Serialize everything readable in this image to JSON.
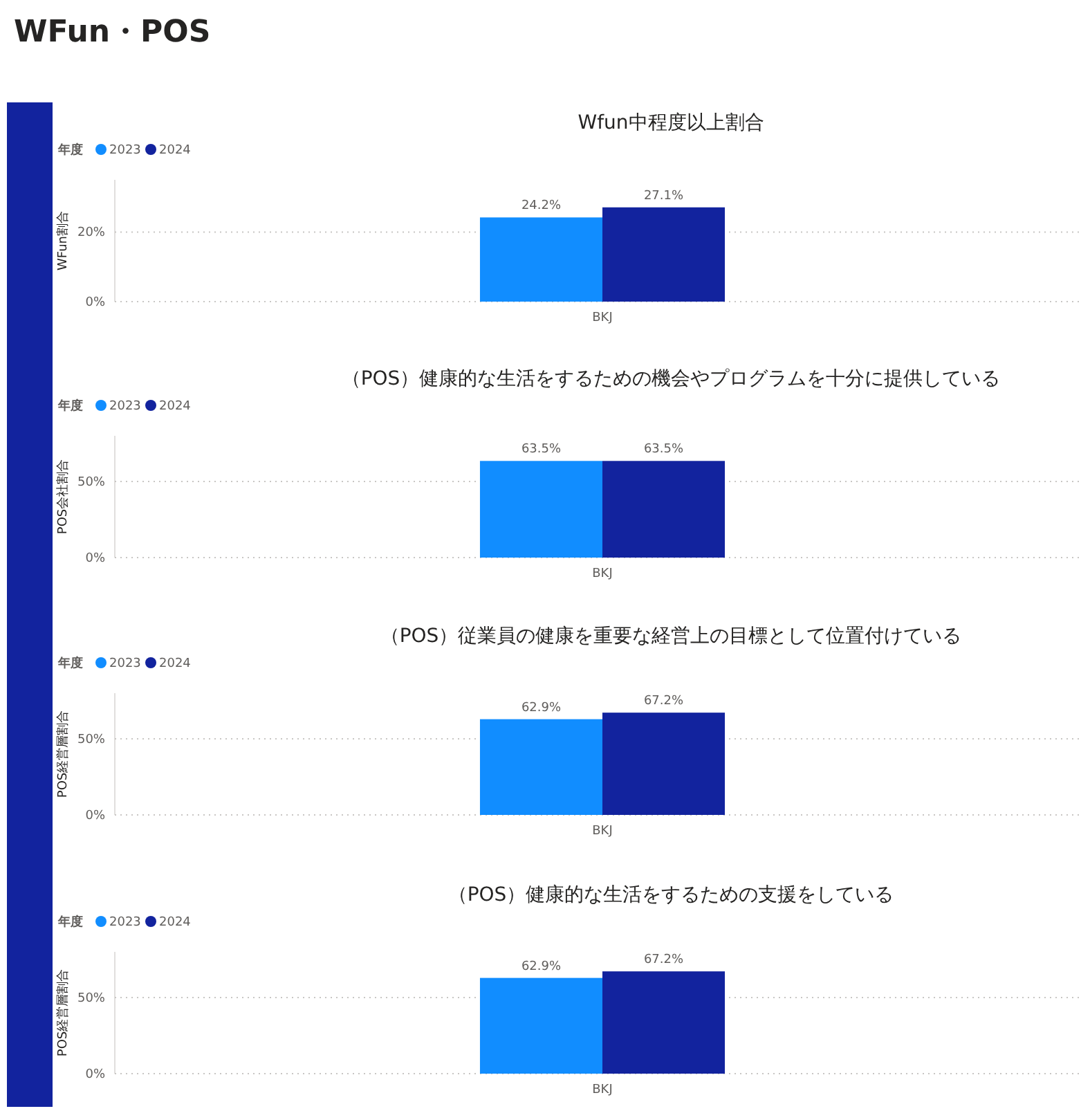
{
  "chart_data": [
    {
      "type": "other",
      "title": "WFun・POS"
    },
    {
      "type": "bar",
      "title": "Wfun中程度以上割合",
      "ylabel": "WFun割合",
      "legend_title": "年度",
      "legend": "top left",
      "grid": "y",
      "categories": [
        "BKJ"
      ],
      "ylim": [
        0,
        35
      ],
      "yticks": [
        {
          "value": 0,
          "label": "0%"
        },
        {
          "value": 20,
          "label": "20%"
        }
      ],
      "series": [
        {
          "name": "2023",
          "color": "#118dff",
          "values": [
            24.2
          ],
          "value_labels": [
            "24.2%"
          ]
        },
        {
          "name": "2024",
          "color": "#12239e",
          "values": [
            27.1
          ],
          "value_labels": [
            "27.1%"
          ]
        }
      ]
    },
    {
      "type": "bar",
      "title": "（POS）健康的な生活をするための機会やプログラムを十分に提供している",
      "ylabel": "POS会社割合",
      "legend_title": "年度",
      "legend": "top left",
      "grid": "y",
      "categories": [
        "BKJ"
      ],
      "ylim": [
        0,
        80
      ],
      "yticks": [
        {
          "value": 0,
          "label": "0%"
        },
        {
          "value": 50,
          "label": "50%"
        }
      ],
      "series": [
        {
          "name": "2023",
          "color": "#118dff",
          "values": [
            63.5
          ],
          "value_labels": [
            "63.5%"
          ]
        },
        {
          "name": "2024",
          "color": "#12239e",
          "values": [
            63.5
          ],
          "value_labels": [
            "63.5%"
          ]
        }
      ]
    },
    {
      "type": "bar",
      "title": "（POS）従業員の健康を重要な経営上の目標として位置付けている",
      "ylabel": "POS経営層割合",
      "legend_title": "年度",
      "legend": "top left",
      "grid": "y",
      "categories": [
        "BKJ"
      ],
      "ylim": [
        0,
        80
      ],
      "yticks": [
        {
          "value": 0,
          "label": "0%"
        },
        {
          "value": 50,
          "label": "50%"
        }
      ],
      "series": [
        {
          "name": "2023",
          "color": "#118dff",
          "values": [
            62.9
          ],
          "value_labels": [
            "62.9%"
          ]
        },
        {
          "name": "2024",
          "color": "#12239e",
          "values": [
            67.2
          ],
          "value_labels": [
            "67.2%"
          ]
        }
      ]
    },
    {
      "type": "bar",
      "title": "（POS）健康的な生活をするための支援をしている",
      "ylabel": "POS経営層割合",
      "legend_title": "年度",
      "legend": "top left",
      "grid": "y",
      "categories": [
        "BKJ"
      ],
      "ylim": [
        0,
        80
      ],
      "yticks": [
        {
          "value": 0,
          "label": "0%"
        },
        {
          "value": 50,
          "label": "50%"
        }
      ],
      "series": [
        {
          "name": "2023",
          "color": "#118dff",
          "values": [
            62.9
          ],
          "value_labels": [
            "62.9%"
          ]
        },
        {
          "name": "2024",
          "color": "#12239e",
          "values": [
            67.2
          ],
          "value_labels": [
            "67.2%"
          ]
        }
      ]
    }
  ]
}
